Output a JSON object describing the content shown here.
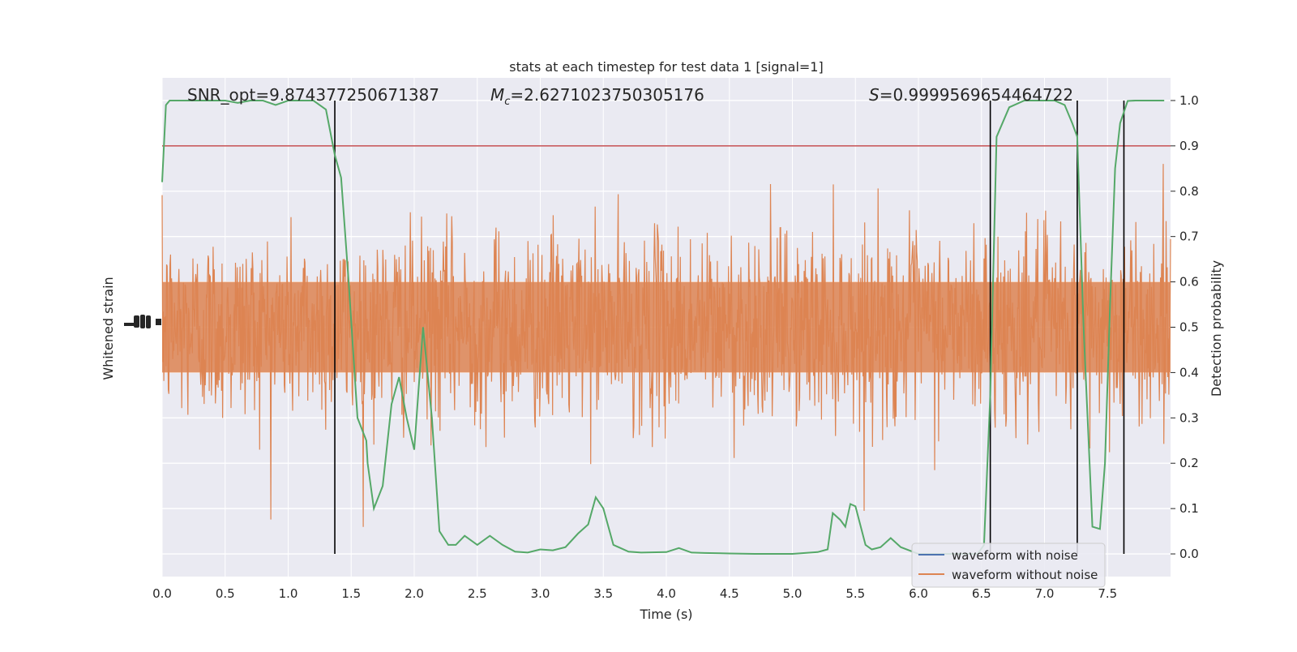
{
  "chart_data": {
    "type": "line",
    "title": "stats at each timestep for test data 1 [signal=1]",
    "xlabel": "Time (s)",
    "ylabel_left": "Whitened strain",
    "ylabel_right": "Detection probability",
    "xlim": [
      0.0,
      8.0
    ],
    "ylim_right": [
      -0.05,
      1.05
    ],
    "x_ticks": [
      "0.0",
      "0.5",
      "1.0",
      "1.5",
      "2.0",
      "2.5",
      "3.0",
      "3.5",
      "4.0",
      "4.5",
      "5.0",
      "5.5",
      "6.0",
      "6.5",
      "7.0",
      "7.5"
    ],
    "y_ticks_right": [
      "0.0",
      "0.1",
      "0.2",
      "0.3",
      "0.4",
      "0.5",
      "0.6",
      "0.7",
      "0.8",
      "0.9",
      "1.0"
    ],
    "grid": true,
    "legend_position": "bottom-right",
    "annotations": {
      "snr": "SNR_opt=9.874377250671387",
      "mc": "=2.6271023750305176",
      "s": "=0.9999569654464722"
    },
    "threshold": 0.9,
    "event_times": [
      1.37,
      6.57,
      7.26,
      7.63
    ],
    "probability_series": {
      "name": "detection probability",
      "color": "#55a868",
      "x": [
        0.0,
        0.03,
        0.06,
        0.1,
        0.2,
        0.3,
        0.4,
        0.5,
        0.6,
        0.7,
        0.8,
        0.9,
        1.0,
        1.1,
        1.2,
        1.3,
        1.37,
        1.42,
        1.48,
        1.55,
        1.62,
        1.63,
        1.68,
        1.75,
        1.82,
        1.88,
        1.94,
        2.0,
        2.07,
        2.14,
        2.2,
        2.27,
        2.33,
        2.4,
        2.5,
        2.6,
        2.7,
        2.8,
        2.9,
        3.0,
        3.1,
        3.2,
        3.3,
        3.38,
        3.44,
        3.5,
        3.58,
        3.7,
        3.8,
        4.0,
        4.1,
        4.2,
        4.3,
        4.5,
        4.7,
        5.0,
        5.2,
        5.28,
        5.32,
        5.38,
        5.42,
        5.46,
        5.5,
        5.58,
        5.63,
        5.7,
        5.78,
        5.86,
        6.0,
        6.3,
        6.4,
        6.47,
        6.52,
        6.57,
        6.62,
        6.72,
        6.84,
        6.96,
        7.08,
        7.16,
        7.22,
        7.26,
        7.31,
        7.38,
        7.44,
        7.48,
        7.52,
        7.56,
        7.6,
        7.66,
        7.72,
        7.8,
        7.95
      ],
      "y": [
        0.82,
        0.99,
        1.0,
        1.0,
        1.0,
        1.0,
        1.0,
        1.0,
        0.995,
        1.0,
        1.0,
        0.99,
        1.0,
        1.0,
        1.0,
        0.98,
        0.88,
        0.83,
        0.6,
        0.3,
        0.25,
        0.2,
        0.1,
        0.15,
        0.33,
        0.39,
        0.3,
        0.23,
        0.5,
        0.3,
        0.05,
        0.02,
        0.02,
        0.04,
        0.02,
        0.04,
        0.02,
        0.005,
        0.003,
        0.01,
        0.008,
        0.015,
        0.045,
        0.065,
        0.125,
        0.1,
        0.02,
        0.005,
        0.003,
        0.004,
        0.013,
        0.003,
        0.002,
        0.001,
        0.0,
        0.0,
        0.004,
        0.01,
        0.09,
        0.075,
        0.06,
        0.11,
        0.105,
        0.02,
        0.01,
        0.015,
        0.035,
        0.015,
        0.0,
        0.0,
        0.0,
        0.0,
        0.02,
        0.35,
        0.92,
        0.985,
        1.0,
        1.0,
        1.0,
        0.99,
        0.95,
        0.92,
        0.5,
        0.06,
        0.055,
        0.2,
        0.55,
        0.85,
        0.95,
        0.999,
        1.0,
        1.0,
        1.0
      ]
    },
    "series": [
      {
        "name": "waveform with noise",
        "color": "#4c72b0"
      },
      {
        "name": "waveform without noise",
        "color": "#dd8452"
      }
    ],
    "colors": {
      "background": "#eaeaf2",
      "grid": "#ffffff",
      "threshold": "#c44e52",
      "event_line": "#000000"
    }
  }
}
